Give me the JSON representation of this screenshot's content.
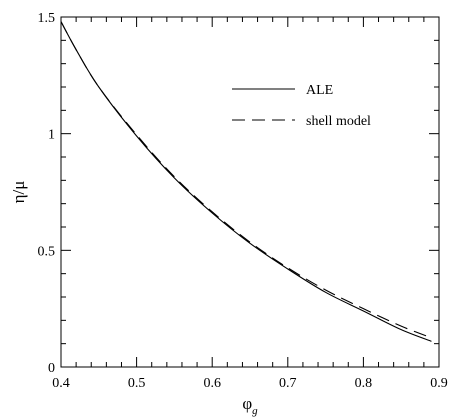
{
  "chart_data": {
    "type": "line",
    "title": "",
    "xlabel": "φ",
    "xlabel_subscript": "g",
    "ylabel": "η/μ",
    "xlim": [
      0.4,
      0.9
    ],
    "ylim": [
      0,
      1.5
    ],
    "xticks": [
      0.4,
      0.5,
      0.6,
      0.7,
      0.8,
      0.9
    ],
    "xtick_labels": [
      "0.4",
      "0.5",
      "0.6",
      "0.7",
      "0.8",
      "0.9"
    ],
    "yticks": [
      0,
      0.5,
      1,
      1.5
    ],
    "ytick_labels": [
      "0",
      "0.5",
      "1",
      "1.5"
    ],
    "x_minor_step": 0.02,
    "y_minor_step": 0.1,
    "grid": false,
    "legend_position": "top-right",
    "series": [
      {
        "name": "ALE",
        "style": "solid",
        "x": [
          0.4,
          0.42,
          0.45,
          0.5,
          0.55,
          0.6,
          0.65,
          0.7,
          0.75,
          0.8,
          0.85,
          0.89
        ],
        "y": [
          1.48,
          1.36,
          1.2,
          0.99,
          0.81,
          0.66,
          0.53,
          0.42,
          0.32,
          0.24,
          0.16,
          0.11
        ]
      },
      {
        "name": "shell model",
        "style": "dashed",
        "x": [
          0.4,
          0.42,
          0.45,
          0.5,
          0.55,
          0.6,
          0.65,
          0.7,
          0.75,
          0.8,
          0.85,
          0.89
        ],
        "y": [
          1.48,
          1.36,
          1.2,
          0.995,
          0.815,
          0.665,
          0.535,
          0.425,
          0.33,
          0.25,
          0.175,
          0.125
        ]
      }
    ]
  }
}
